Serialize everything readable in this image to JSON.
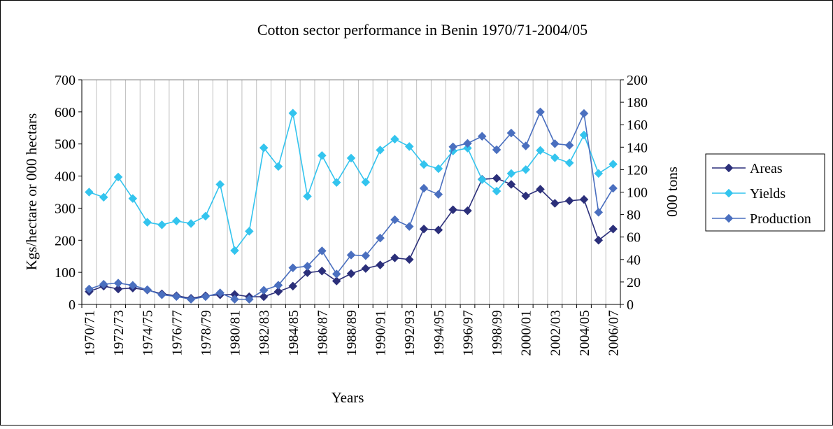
{
  "chart_data": {
    "type": "line",
    "title": "Cotton sector performance in Benin 1970/71-2004/05",
    "xlabel": "Years",
    "ylabel": "Kgs/hectare or 000 hectars",
    "y2label": "000 tons",
    "ylim": [
      0,
      700
    ],
    "y2lim": [
      0,
      200
    ],
    "yticks": [
      "0",
      "100",
      "200",
      "300",
      "400",
      "500",
      "600",
      "700"
    ],
    "y2ticks": [
      "0",
      "20",
      "40",
      "60",
      "80",
      "100",
      "120",
      "140",
      "160",
      "180",
      "200"
    ],
    "grid": "vertical",
    "legend_position": "right",
    "x": [
      "1970/71",
      "1971/72",
      "1972/73",
      "1973/74",
      "1974/75",
      "1975/76",
      "1976/77",
      "1977/78",
      "1978/79",
      "1979/80",
      "1980/81",
      "1981/82",
      "1982/83",
      "1983/84",
      "1984/85",
      "1985/86",
      "1986/87",
      "1987/88",
      "1988/89",
      "1989/90",
      "1990/91",
      "1991/92",
      "1992/93",
      "1993/94",
      "1994/95",
      "1995/96",
      "1996/97",
      "1997/98",
      "1998/99",
      "1999/00",
      "2000/01",
      "2001/02",
      "2002/03",
      "2003/04",
      "2004/05",
      "2005/06",
      "2006/07"
    ],
    "x_tick_labels": [
      "1970/71",
      "1972/73",
      "1974/75",
      "1976/77",
      "1978/79",
      "1980/81",
      "1982/83",
      "1984/85",
      "1986/87",
      "1988/89",
      "1990/91",
      "1992/93",
      "1994/95",
      "1996/97",
      "1998/99",
      "2000/01",
      "2002/03",
      "2004/05",
      "2006/07"
    ],
    "series": [
      {
        "name": "Areas",
        "axis": "left",
        "color": "#2b2f7a",
        "values": [
          40,
          57,
          48,
          51,
          45,
          33,
          27,
          19,
          27,
          30,
          31,
          24,
          24,
          40,
          57,
          99,
          104,
          73,
          96,
          112,
          123,
          145,
          140,
          235,
          232,
          295,
          292,
          390,
          393,
          374,
          338,
          359,
          315,
          323,
          327,
          200,
          235
        ]
      },
      {
        "name": "Yields",
        "axis": "left",
        "color": "#33c4ee",
        "values": [
          350,
          334,
          397,
          330,
          256,
          248,
          260,
          252,
          275,
          374,
          168,
          228,
          488,
          430,
          596,
          337,
          464,
          380,
          456,
          381,
          481,
          515,
          492,
          436,
          423,
          478,
          487,
          389,
          353,
          408,
          420,
          480,
          457,
          441,
          528,
          408,
          437
        ]
      },
      {
        "name": "Production",
        "axis": "right",
        "color": "#4a6fbf",
        "values": [
          13.7,
          18,
          19,
          17,
          13.1,
          8.6,
          7,
          4.6,
          6.9,
          10.3,
          4.6,
          4.6,
          12.6,
          17.1,
          32.6,
          34,
          47.7,
          27.1,
          44,
          43.4,
          59.1,
          75.4,
          69.4,
          103.4,
          98,
          140.3,
          143.4,
          149.7,
          137.7,
          152.6,
          141.1,
          171.4,
          143.1,
          141.7,
          170,
          82,
          103.4
        ]
      }
    ]
  }
}
